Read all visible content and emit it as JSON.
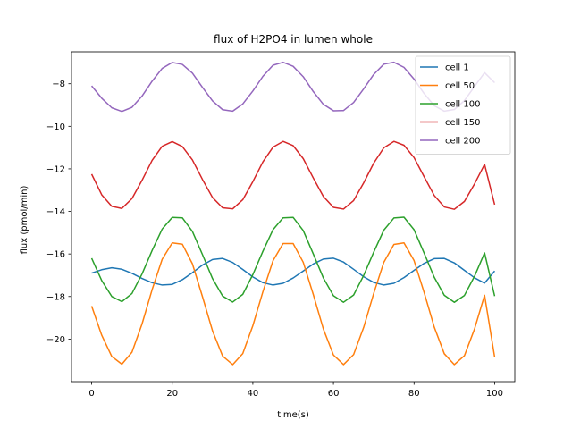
{
  "chart_data": {
    "type": "line",
    "title": "flux of H2PO4 in lumen whole",
    "xlabel": "time(s)",
    "ylabel": "flux (pmol/min)",
    "xlim": [
      -5,
      105
    ],
    "ylim": [
      -22,
      -6.5
    ],
    "xticks": [
      0,
      20,
      40,
      60,
      80,
      100
    ],
    "yticks": [
      -20,
      -18,
      -16,
      -14,
      -12,
      -10,
      -8
    ],
    "ytick_labels": [
      "−20",
      "−18",
      "−16",
      "−14",
      "−12",
      "−10",
      "−8"
    ],
    "grid": false,
    "legend_position": "top-right",
    "x": [
      0,
      2.5,
      5,
      7.5,
      10,
      12.5,
      15,
      17.5,
      20,
      22.5,
      25,
      27.5,
      30,
      32.5,
      35,
      37.5,
      40,
      42.5,
      45,
      47.5,
      50,
      52.5,
      55,
      57.5,
      60,
      62.5,
      65,
      67.5,
      70,
      72.5,
      75,
      77.5,
      80,
      82.5,
      85,
      87.5,
      90,
      92.5,
      95,
      97.5,
      100
    ],
    "series": [
      {
        "name": "cell 1",
        "color": "#1f77b4",
        "values": [
          -16.9,
          -16.74,
          -16.65,
          -16.72,
          -16.91,
          -17.15,
          -17.35,
          -17.46,
          -17.43,
          -17.21,
          -16.88,
          -16.52,
          -16.26,
          -16.21,
          -16.4,
          -16.73,
          -17.08,
          -17.35,
          -17.46,
          -17.38,
          -17.13,
          -16.8,
          -16.47,
          -16.24,
          -16.2,
          -16.38,
          -16.72,
          -17.07,
          -17.34,
          -17.46,
          -17.38,
          -17.11,
          -16.77,
          -16.44,
          -16.22,
          -16.21,
          -16.42,
          -16.77,
          -17.12,
          -17.37,
          -16.8
        ]
      },
      {
        "name": "cell 50",
        "color": "#ff7f0e",
        "values": [
          -18.45,
          -19.82,
          -20.82,
          -21.18,
          -20.62,
          -19.29,
          -17.68,
          -16.25,
          -15.48,
          -15.54,
          -16.46,
          -18.01,
          -19.62,
          -20.8,
          -21.2,
          -20.68,
          -19.37,
          -17.77,
          -16.32,
          -15.51,
          -15.51,
          -16.39,
          -17.91,
          -19.53,
          -20.75,
          -21.2,
          -20.73,
          -19.45,
          -17.85,
          -16.39,
          -15.55,
          -15.48,
          -16.31,
          -17.81,
          -19.43,
          -20.69,
          -21.2,
          -20.78,
          -19.53,
          -17.94,
          -20.85
        ]
      },
      {
        "name": "cell 100",
        "color": "#2ca02c",
        "values": [
          -16.2,
          -17.25,
          -18.0,
          -18.24,
          -17.86,
          -16.94,
          -15.84,
          -14.83,
          -14.28,
          -14.3,
          -14.94,
          -16.03,
          -17.16,
          -17.98,
          -18.26,
          -17.9,
          -16.97,
          -15.87,
          -14.86,
          -14.3,
          -14.28,
          -14.9,
          -16.0,
          -17.13,
          -17.96,
          -18.27,
          -17.93,
          -17.01,
          -15.91,
          -14.88,
          -14.31,
          -14.27,
          -14.86,
          -15.96,
          -17.09,
          -17.94,
          -18.27,
          -17.95,
          -17.05,
          -15.95,
          -17.98
        ]
      },
      {
        "name": "cell 150",
        "color": "#d62728",
        "values": [
          -12.25,
          -13.22,
          -13.76,
          -13.86,
          -13.4,
          -12.54,
          -11.6,
          -10.94,
          -10.72,
          -10.95,
          -11.58,
          -12.5,
          -13.35,
          -13.83,
          -13.88,
          -13.45,
          -12.6,
          -11.67,
          -10.98,
          -10.71,
          -10.91,
          -11.52,
          -12.43,
          -13.3,
          -13.81,
          -13.89,
          -13.49,
          -12.66,
          -11.73,
          -11.01,
          -10.71,
          -10.89,
          -11.47,
          -12.37,
          -13.25,
          -13.79,
          -13.9,
          -13.53,
          -12.71,
          -11.79,
          -13.68
        ]
      },
      {
        "name": "cell 200",
        "color": "#9467bd",
        "values": [
          -8.1,
          -8.68,
          -9.13,
          -9.3,
          -9.11,
          -8.58,
          -7.88,
          -7.28,
          -7.0,
          -7.09,
          -7.5,
          -8.17,
          -8.81,
          -9.22,
          -9.29,
          -8.95,
          -8.34,
          -7.65,
          -7.13,
          -6.99,
          -7.18,
          -7.67,
          -8.37,
          -8.97,
          -9.27,
          -9.26,
          -8.88,
          -8.24,
          -7.56,
          -7.08,
          -6.99,
          -7.23,
          -7.78,
          -8.46,
          -9.03,
          -9.29,
          -9.21,
          -8.79,
          -8.13,
          -7.48,
          -7.95
        ]
      }
    ]
  }
}
